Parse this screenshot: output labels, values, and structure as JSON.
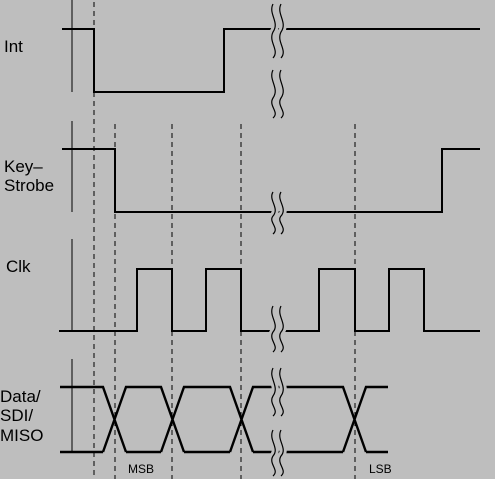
{
  "signals": {
    "int": {
      "label_lines": [
        "Int"
      ]
    },
    "key_strobe": {
      "label_lines": [
        "Key–",
        "Strobe"
      ]
    },
    "clk": {
      "label_lines": [
        "Clk"
      ]
    },
    "data": {
      "label_lines": [
        "Data/",
        "SDI/",
        "MISO"
      ]
    }
  },
  "bit_labels": {
    "msb": "MSB",
    "lsb": "LSB"
  },
  "colors": {
    "background": "#bebebe",
    "ink": "#000000"
  }
}
